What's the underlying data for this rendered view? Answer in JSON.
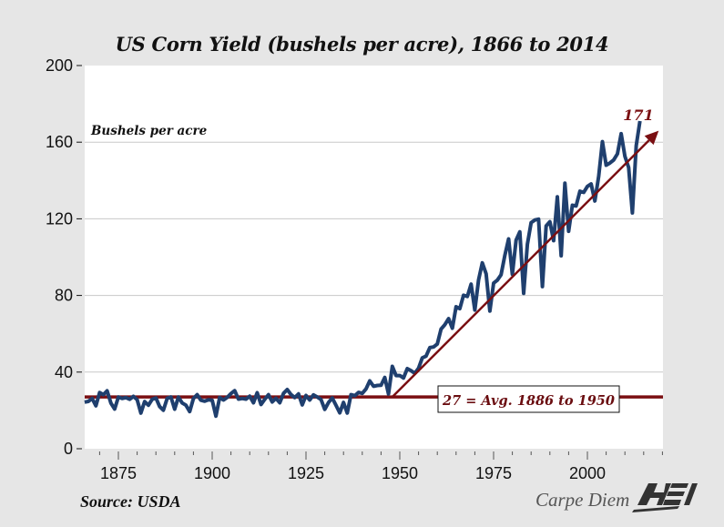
{
  "chart_data": {
    "type": "line",
    "title": "US Corn Yield (bushels per acre), 1866 to 2014",
    "ylabel": "Bushels per acre",
    "xlabel": "",
    "xlim": [
      1866,
      2020
    ],
    "ylim": [
      0,
      200
    ],
    "grid": true,
    "yticks": [
      0,
      40,
      80,
      120,
      160,
      200
    ],
    "ytick_labels": [
      "0",
      "40",
      "80",
      "120",
      "160",
      "200"
    ],
    "xticks": [
      1875,
      1900,
      1925,
      1950,
      1975,
      2000
    ],
    "xtick_labels": [
      "1875",
      "1900",
      "1925",
      "1950",
      "1975",
      "2000"
    ],
    "series": [
      {
        "name": "Corn yield",
        "color": "#1f3f6e",
        "x": [
          1866,
          1867,
          1868,
          1869,
          1870,
          1871,
          1872,
          1873,
          1874,
          1875,
          1876,
          1877,
          1878,
          1879,
          1880,
          1881,
          1882,
          1883,
          1884,
          1885,
          1886,
          1887,
          1888,
          1889,
          1890,
          1891,
          1892,
          1893,
          1894,
          1895,
          1896,
          1897,
          1898,
          1899,
          1900,
          1901,
          1902,
          1903,
          1904,
          1905,
          1906,
          1907,
          1908,
          1909,
          1910,
          1911,
          1912,
          1913,
          1914,
          1915,
          1916,
          1917,
          1918,
          1919,
          1920,
          1921,
          1922,
          1923,
          1924,
          1925,
          1926,
          1927,
          1928,
          1929,
          1930,
          1931,
          1932,
          1933,
          1934,
          1935,
          1936,
          1937,
          1938,
          1939,
          1940,
          1941,
          1942,
          1943,
          1944,
          1945,
          1946,
          1947,
          1948,
          1949,
          1950,
          1951,
          1952,
          1953,
          1954,
          1955,
          1956,
          1957,
          1958,
          1959,
          1960,
          1961,
          1962,
          1963,
          1964,
          1965,
          1966,
          1967,
          1968,
          1969,
          1970,
          1971,
          1972,
          1973,
          1974,
          1975,
          1976,
          1977,
          1978,
          1979,
          1980,
          1981,
          1982,
          1983,
          1984,
          1985,
          1986,
          1987,
          1988,
          1989,
          1990,
          1991,
          1992,
          1993,
          1994,
          1995,
          1996,
          1997,
          1998,
          1999,
          2000,
          2001,
          2002,
          2003,
          2004,
          2005,
          2006,
          2007,
          2008,
          2009,
          2010,
          2011,
          2012,
          2013,
          2014
        ],
        "values": [
          24.3,
          24.7,
          26.2,
          22.4,
          29.3,
          28.2,
          30.2,
          23.8,
          20.7,
          27.0,
          26.2,
          26.7,
          25.8,
          27.3,
          25.6,
          18.6,
          24.6,
          22.7,
          25.8,
          26.5,
          22.0,
          20.1,
          26.3,
          27.0,
          20.6,
          27.0,
          23.9,
          22.7,
          19.4,
          26.2,
          28.2,
          25.3,
          24.8,
          25.5,
          25.3,
          17.0,
          26.8,
          25.4,
          26.8,
          28.8,
          30.3,
          25.9,
          26.2,
          25.9,
          27.4,
          24.0,
          29.2,
          23.1,
          25.8,
          28.2,
          24.4,
          26.3,
          24.0,
          28.9,
          30.9,
          28.3,
          26.7,
          28.6,
          22.9,
          27.8,
          25.4,
          28.1,
          27.0,
          25.7,
          20.5,
          24.1,
          26.5,
          22.6,
          18.7,
          24.2,
          18.6,
          28.2,
          27.7,
          29.4,
          28.9,
          31.2,
          35.4,
          32.6,
          33.0,
          33.1,
          37.2,
          28.6,
          43.0,
          38.2,
          38.2,
          36.9,
          41.8,
          40.7,
          39.4,
          42.0,
          47.4,
          48.3,
          52.8,
          53.1,
          54.7,
          62.4,
          64.7,
          67.9,
          62.9,
          74.1,
          73.1,
          80.1,
          79.5,
          85.9,
          72.4,
          88.1,
          97.0,
          91.3,
          71.9,
          86.4,
          88.0,
          90.8,
          101.0,
          109.5,
          91.0,
          108.9,
          113.2,
          81.1,
          106.7,
          118.0,
          119.4,
          119.8,
          84.6,
          116.3,
          118.5,
          108.6,
          131.5,
          100.7,
          138.6,
          113.5,
          127.1,
          126.7,
          134.4,
          133.8,
          136.9,
          138.2,
          129.3,
          142.2,
          160.3,
          148.0,
          149.1,
          150.7,
          153.9,
          164.4,
          152.6,
          146.8,
          123.1,
          158.1,
          171.0
        ]
      }
    ],
    "annotations": {
      "y_axis_label": "Bushels per acre",
      "end_value_label": "171",
      "average_line": {
        "value": 27,
        "label": "27 = Avg. 1886 to 1950",
        "color": "#7a0f12"
      },
      "trend_arrow": {
        "from": [
          1948,
          27
        ],
        "to": [
          2019,
          166
        ],
        "color": "#7a0f12"
      }
    }
  },
  "footer": {
    "source": "Source: USDA",
    "brand_text": "Carpe Diem",
    "logo_text": "AEI"
  }
}
